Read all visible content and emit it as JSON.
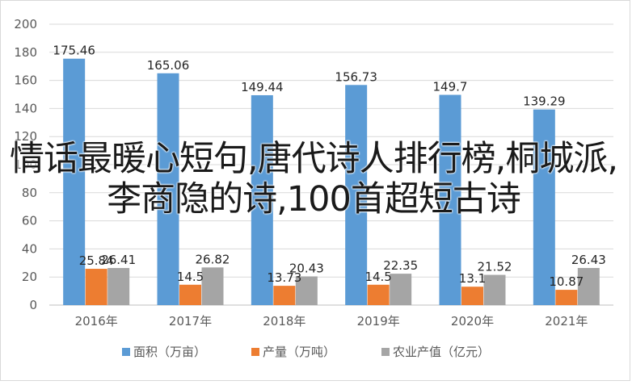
{
  "colors": {
    "area": "#5b9bd5",
    "output": "#ed7d31",
    "value": "#a5a5a5",
    "grid": "#d9d9d9",
    "axis_text": "#595959"
  },
  "overlay_text": "情话最暖心短句,唐代诗人排行榜,桐城派,李商隐的诗,100首超短古诗",
  "chart_data": {
    "type": "bar",
    "categories": [
      "2016年",
      "2017年",
      "2018年",
      "2019年",
      "2020年",
      "2021年"
    ],
    "series": [
      {
        "name": "面积（万亩）",
        "values": [
          175.46,
          165.06,
          149.44,
          156.73,
          149.7,
          139.29
        ],
        "labels": [
          "175.46",
          "165.06",
          "149.44",
          "156.73",
          "149.7",
          "139.29"
        ]
      },
      {
        "name": "产量（万吨）",
        "values": [
          25.84,
          14.5,
          13.73,
          14.5,
          13.1,
          10.87
        ],
        "labels": [
          "25.84",
          "14.5",
          "13.73",
          "14.5",
          "13.1",
          "10.87"
        ]
      },
      {
        "name": "农业产值（亿元）",
        "values": [
          26.41,
          26.82,
          20.43,
          22.35,
          21.52,
          26.43
        ],
        "labels": [
          "26.41",
          "26.82",
          "20.43",
          "22.35",
          "21.52",
          "26.43"
        ]
      }
    ],
    "ylim": [
      0,
      200
    ],
    "yticks": [
      "0",
      "20",
      "40",
      "60",
      "80",
      "100",
      "120",
      "140",
      "160",
      "180",
      "200"
    ],
    "grid": true,
    "legend_position": "bottom"
  }
}
